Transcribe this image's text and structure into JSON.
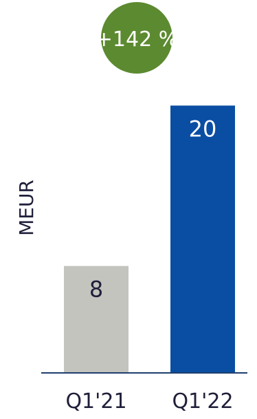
{
  "badge": {
    "text": "+142 %",
    "color": "#5c8a30"
  },
  "chart_data": {
    "type": "bar",
    "ylabel": "MEUR",
    "categories": [
      "Q1'21",
      "Q1'22"
    ],
    "values": [
      8,
      20
    ],
    "colors": [
      "#c3c4be",
      "#0a4ea3"
    ],
    "ylim": [
      0,
      21
    ],
    "grid": false,
    "legend": "none"
  }
}
